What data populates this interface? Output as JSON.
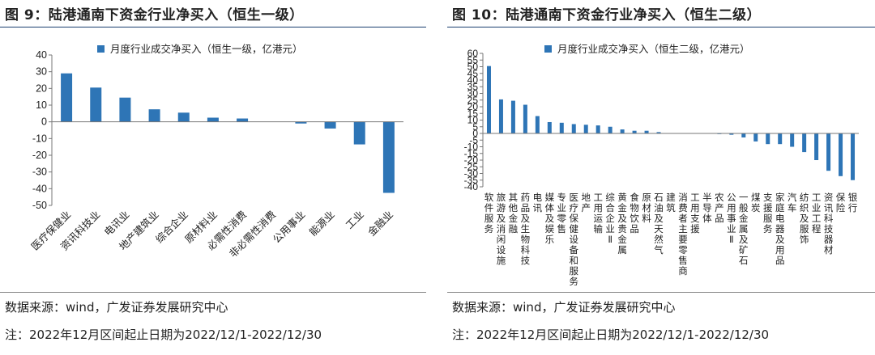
{
  "charts": [
    {
      "figure_title": "图 9：陆港通南下资金行业净买入（恒生一级）",
      "source": "数据来源：wind，广发证券发展研究中心",
      "note": "注：2022年12月区间起止日期为2022/12/1-2022/12/30"
    },
    {
      "figure_title": "图 10：陆港通南下资金行业净买入（恒生二级）",
      "source": "数据来源：wind，广发证券发展研究中心",
      "note": "注：2022年12月区间起止日期为2022/12/1-2022/12/30"
    }
  ],
  "colors": {
    "bar": "#2e75b6",
    "axis": "#777777",
    "title_rule": "#1a3f6e"
  },
  "chart_data": [
    {
      "type": "bar",
      "title": "陆港通南下资金行业净买入（恒生一级）",
      "legend": "月度行业成交净买入（恒生一级，亿港元）",
      "categories": [
        "医疗保健业",
        "资讯科技业",
        "电讯业",
        "地产建筑业",
        "综合企业",
        "原材料业",
        "必需性消费",
        "非必需性消费",
        "公用事业",
        "能源业",
        "工业",
        "金融业"
      ],
      "values": [
        29,
        20.5,
        14.5,
        7.5,
        5.5,
        2.5,
        2,
        0,
        -1,
        -4,
        -13.5,
        -42.5
      ],
      "ylim": [
        -50,
        40
      ],
      "yticks": [
        -50,
        -40,
        -30,
        -20,
        -10,
        0,
        10,
        20,
        30,
        40
      ],
      "xlabel": "",
      "ylabel": ""
    },
    {
      "type": "bar",
      "title": "陆港通南下资金行业净买入（恒生二级）",
      "legend": "月度行业成交净买入（恒生二级，亿港元）",
      "categories": [
        "软件服务",
        "旅游及消闲设施",
        "其他金融",
        "药品及生物科技",
        "电讯",
        "媒体及娱乐",
        "专业零售",
        "医疗保健设备和服务",
        "地产",
        "工用运输",
        "综合企业Ⅱ",
        "黄金及贵金属",
        "食物饮品",
        "原材料",
        "石油及天然气",
        "建筑",
        "消费者主要零售商",
        "工用支援",
        "半导体",
        "农产品",
        "公用事业Ⅱ",
        "一般金属及矿石",
        "煤炭",
        "支援服务",
        "家庭电器及用品",
        "汽车",
        "纺织及服饰",
        "工业工程",
        "资讯科技器材",
        "保险",
        "银行"
      ],
      "values": [
        50.5,
        25.5,
        24.5,
        21.5,
        13,
        8.5,
        8,
        7,
        6.5,
        6,
        5,
        3,
        2,
        2,
        1,
        0,
        0,
        0,
        0,
        -0.5,
        -1,
        -3,
        -6,
        -8,
        -8,
        -10,
        -14,
        -20,
        -28,
        -32,
        -35
      ],
      "ylim": [
        -40,
        60
      ],
      "yticks": [
        -40,
        -35,
        -30,
        -25,
        -20,
        -15,
        -10,
        -5,
        0,
        5,
        10,
        15,
        20,
        25,
        30,
        35,
        40,
        45,
        50,
        55,
        60
      ],
      "xlabel": "",
      "ylabel": ""
    }
  ]
}
